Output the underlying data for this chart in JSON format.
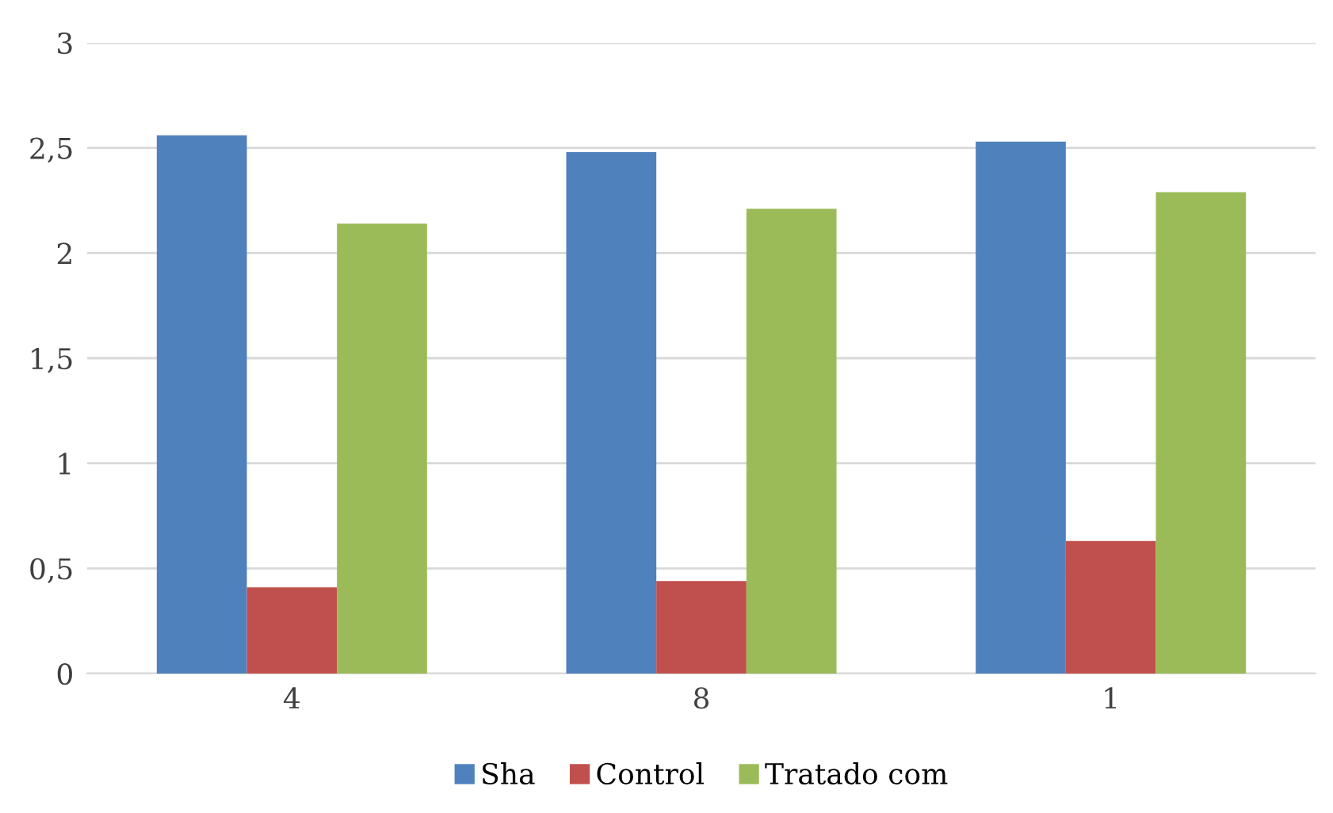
{
  "chart_data": {
    "type": "bar",
    "categories": [
      "4",
      "8",
      "1"
    ],
    "series": [
      {
        "name": "Sha",
        "color": "#4f81bd",
        "values": [
          2.56,
          2.48,
          2.53
        ]
      },
      {
        "name": "Control",
        "color": "#c0504d",
        "values": [
          0.41,
          0.44,
          0.63
        ]
      },
      {
        "name": "Tratado com",
        "color": "#9bbb59",
        "values": [
          2.14,
          2.21,
          2.29
        ]
      }
    ],
    "ylim": [
      0,
      3
    ],
    "yticks": [
      {
        "value": 0,
        "label": "0"
      },
      {
        "value": 0.5,
        "label": "0,5"
      },
      {
        "value": 1,
        "label": "1"
      },
      {
        "value": 1.5,
        "label": "1,5"
      },
      {
        "value": 2,
        "label": "2"
      },
      {
        "value": 2.5,
        "label": "2,5"
      },
      {
        "value": 3,
        "label": "3"
      }
    ],
    "grid": "y",
    "legend": "bottom"
  }
}
